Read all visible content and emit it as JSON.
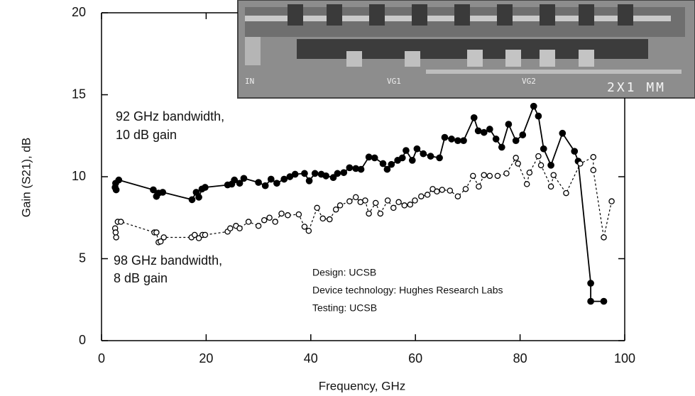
{
  "chart_data": {
    "type": "line",
    "xlabel": "Frequency, GHz",
    "ylabel": "Gain (S21), dB",
    "xlim": [
      0,
      100
    ],
    "xticks": [
      0,
      20,
      40,
      60,
      80,
      100
    ],
    "ylim": [
      0,
      20
    ],
    "yticks": [
      0,
      5,
      10,
      15,
      20
    ],
    "annotations": [
      "92 GHz bandwidth,",
      "10 dB gain",
      "98 GHz bandwidth,",
      "8 dB gain",
      "Design: UCSB",
      "Device technology: Hughes Research Labs",
      "Testing: UCSB"
    ],
    "inset_labels": [
      "IN",
      "VG1",
      "VG2",
      "2X1 MM"
    ],
    "series": [
      {
        "color": "#000000",
        "marker": "filled",
        "dash": false,
        "x": [
          2.7,
          2.6,
          2.8,
          3.3,
          9.9,
          10.5,
          10.9,
          11.7,
          17.3,
          18.1,
          18.6,
          19.2,
          19.8,
          24.1,
          24.9,
          25.4,
          26.4,
          27.2,
          30,
          31.3,
          32.4,
          33.5,
          34.9,
          36,
          37,
          38.8,
          39.7,
          40.8,
          42,
          42.9,
          44.3,
          45.1,
          46.3,
          47.4,
          48.6,
          49.6,
          51.1,
          52.2,
          53.8,
          54.6,
          55.4,
          56.6,
          57.5,
          58.2,
          59.4,
          60.3,
          61.5,
          62.9,
          64.6,
          65.6,
          66.9,
          68.1,
          69.2,
          71.2,
          72,
          73.1,
          74.2,
          75.4,
          76.5,
          77.8,
          79.2,
          80.5,
          82.6,
          83.5,
          84.5,
          85.9,
          88.1,
          90.4,
          91.1,
          93.5,
          93.5,
          96
        ],
        "values": [
          9.6,
          9.35,
          9.2,
          9.8,
          9.2,
          8.8,
          9.0,
          9.05,
          8.6,
          9.05,
          8.75,
          9.25,
          9.35,
          9.5,
          9.55,
          9.8,
          9.6,
          9.9,
          9.65,
          9.45,
          9.85,
          9.6,
          9.85,
          10.0,
          10.15,
          10.2,
          9.75,
          10.2,
          10.15,
          10.05,
          9.95,
          10.2,
          10.25,
          10.55,
          10.5,
          10.45,
          11.2,
          11.15,
          10.8,
          10.45,
          10.75,
          11.0,
          11.15,
          11.6,
          11.0,
          11.7,
          11.4,
          11.25,
          11.15,
          12.4,
          12.3,
          12.2,
          12.2,
          13.6,
          12.8,
          12.7,
          12.9,
          12.3,
          11.8,
          13.2,
          12.2,
          12.55,
          14.3,
          13.7,
          11.7,
          10.7,
          12.65,
          11.55,
          10.95,
          3.5,
          2.4,
          2.4
        ]
      },
      {
        "color": "#000000",
        "marker": "open",
        "dash": true,
        "x": [
          2.6,
          2.7,
          2.8,
          3.1,
          3.7,
          10.1,
          10.5,
          10.9,
          11.3,
          11.9,
          17.2,
          17.8,
          18.6,
          19.3,
          19.8,
          24.1,
          24.6,
          25.7,
          26.4,
          28.1,
          30,
          31.1,
          32.1,
          33.2,
          34.4,
          35.6,
          37.7,
          38.8,
          39.6,
          41.2,
          42.3,
          43.6,
          44.8,
          45.6,
          47.4,
          48.6,
          49.5,
          50.4,
          51.1,
          52.4,
          53.3,
          54.7,
          55.8,
          56.8,
          57.9,
          59,
          59.9,
          61.1,
          62.3,
          63.3,
          64.1,
          65.1,
          66.6,
          68.1,
          69.6,
          71,
          72.1,
          73.1,
          74.2,
          75.7,
          77.4,
          79.2,
          79.6,
          81.3,
          81.8,
          83.5,
          84,
          85.9,
          86.4,
          88.8,
          91.5,
          94,
          94,
          96,
          97.5
        ],
        "values": [
          6.85,
          6.6,
          6.3,
          7.25,
          7.25,
          6.6,
          6.6,
          6.0,
          6.05,
          6.3,
          6.3,
          6.45,
          6.25,
          6.45,
          6.45,
          6.65,
          6.85,
          7.0,
          6.85,
          7.25,
          7.0,
          7.35,
          7.5,
          7.25,
          7.75,
          7.65,
          7.7,
          6.95,
          6.7,
          8.1,
          7.45,
          7.4,
          8.0,
          8.25,
          8.5,
          8.75,
          8.45,
          8.55,
          7.75,
          8.4,
          7.75,
          8.55,
          8.1,
          8.45,
          8.25,
          8.3,
          8.55,
          8.8,
          8.9,
          9.25,
          9.1,
          9.2,
          9.15,
          8.8,
          9.25,
          10.05,
          9.4,
          10.1,
          10.05,
          10.05,
          10.2,
          11.15,
          10.8,
          9.55,
          10.25,
          11.25,
          10.7,
          9.4,
          10.1,
          9.0,
          10.8,
          11.2,
          10.4,
          6.3,
          8.5
        ]
      }
    ]
  }
}
